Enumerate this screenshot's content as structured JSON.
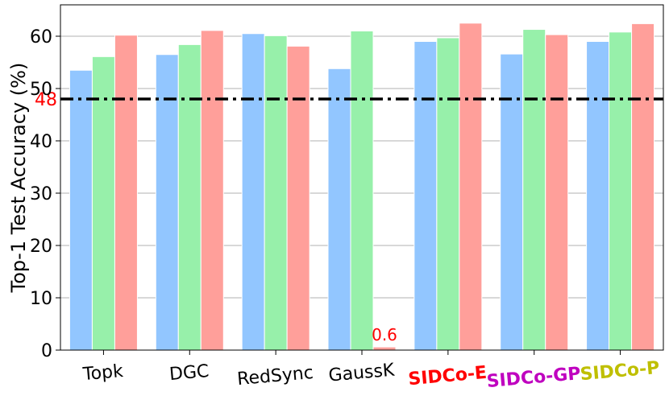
{
  "chart_data": {
    "type": "bar",
    "title": "",
    "xlabel": "",
    "ylabel": "Top-1 Test Accuracy (%)",
    "ylim": [
      0,
      66
    ],
    "yticks": [
      0,
      10,
      20,
      30,
      40,
      50,
      60
    ],
    "grid": true,
    "categories": [
      "Topk",
      "DGC",
      "RedSync",
      "GaussK",
      "SIDCo-E",
      "SIDCo-GP",
      "SIDCo-P"
    ],
    "category_styles": [
      {
        "color": "#000000",
        "bold": false
      },
      {
        "color": "#000000",
        "bold": false
      },
      {
        "color": "#000000",
        "bold": false
      },
      {
        "color": "#000000",
        "bold": false
      },
      {
        "color": "#ff0000",
        "bold": true
      },
      {
        "color": "#bf00bf",
        "bold": true
      },
      {
        "color": "#bfbf00",
        "bold": true
      }
    ],
    "series": [
      {
        "values": [
          53.5,
          56.5,
          60.5,
          53.8,
          59.0,
          56.6,
          59.0
        ],
        "color": "#92c6ff"
      },
      {
        "values": [
          56.1,
          58.4,
          60.1,
          61.0,
          59.7,
          61.3,
          60.8
        ],
        "color": "#97f0aa"
      },
      {
        "values": [
          60.2,
          61.1,
          58.1,
          0.6,
          62.5,
          60.3,
          62.4
        ],
        "color": "#ff9f9a"
      }
    ],
    "reference_line": {
      "value": 48,
      "label": "48",
      "label_color": "#ff0000",
      "line_color": "#000000"
    },
    "annotations": [
      {
        "text": "0.6",
        "category": "GaussK",
        "series": 2,
        "color": "#ff0000"
      }
    ]
  }
}
